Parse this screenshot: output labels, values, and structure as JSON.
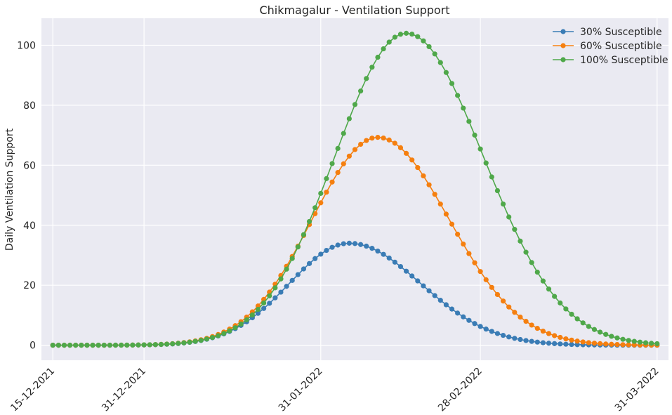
{
  "chart_data": {
    "type": "line",
    "title": "Chikmagalur - Ventilation Support",
    "xlabel": "",
    "ylabel": "Daily Ventilation Support",
    "x_ticks": [
      "15-12-2021",
      "31-12-2021",
      "31-01-2022",
      "28-02-2022",
      "31-03-2022"
    ],
    "y_ticks": [
      "0",
      "20",
      "40",
      "60",
      "80",
      "100"
    ],
    "ylim": [
      -5,
      109
    ],
    "xlim": [
      "2021-12-13",
      "2022-04-02"
    ],
    "x_start": "2021-12-15",
    "x_end": "2022-03-31",
    "grid": true,
    "legend_position": "top-right",
    "series": [
      {
        "name": "30% Susceptible",
        "color": "#3a7cb5",
        "peak_date": "2022-02-05",
        "peak_value": 34,
        "rise_width_days": 10.5,
        "fall_width_days": 12.5
      },
      {
        "name": "60% Susceptible",
        "color": "#f57f0f",
        "peak_date": "2022-02-10",
        "peak_value": 69.3,
        "rise_width_days": 11.5,
        "fall_width_days": 12.5
      },
      {
        "name": "100% Susceptible",
        "color": "#4fa84a",
        "peak_date": "2022-02-15",
        "peak_value": 104,
        "rise_width_days": 12.5,
        "fall_width_days": 13.5
      }
    ]
  }
}
